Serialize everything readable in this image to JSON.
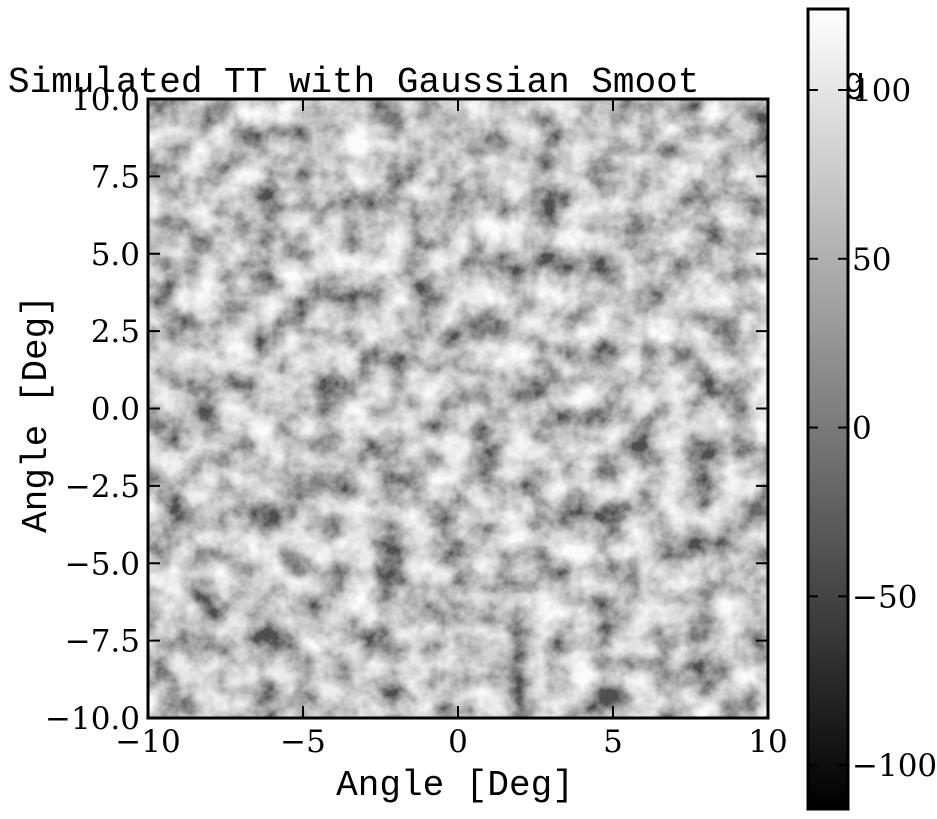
{
  "chart_data": {
    "type": "heatmap",
    "title": "Simulated TT with Gaussian Smoot",
    "title_tail": "ng",
    "xlabel": "Angle [Deg]",
    "ylabel": "Angle [Deg]",
    "xlim": [
      -10,
      10
    ],
    "ylim": [
      -10,
      10
    ],
    "xticks": [
      -10,
      -5,
      0,
      5,
      10
    ],
    "xtick_labels": [
      "−10",
      "−5",
      "0",
      "5",
      "10"
    ],
    "yticks": [
      -10,
      -7.5,
      -5,
      -2.5,
      0,
      2.5,
      5,
      7.5,
      10
    ],
    "ytick_labels": [
      "−10.0",
      "−7.5",
      "−5.0",
      "−2.5",
      "0.0",
      "2.5",
      "5.0",
      "7.5",
      "10.0"
    ],
    "colormap": "gray",
    "colorbar": {
      "range": [
        -113,
        124
      ],
      "ticks": [
        -100,
        -50,
        0,
        50,
        100
      ],
      "tick_labels": [
        "−100",
        "−50",
        "0",
        "50",
        "100"
      ]
    },
    "grid": false
  }
}
